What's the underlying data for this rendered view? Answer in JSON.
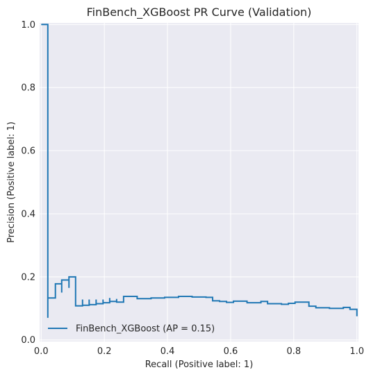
{
  "colors": {
    "plot_background": "#eaeaf2",
    "grid": "#ffffff",
    "series": "#1f77b4",
    "text": "#262626"
  },
  "chart_data": {
    "type": "line",
    "title": "FinBench_XGBoost PR Curve (Validation)",
    "xlabel": "Recall (Positive label: 1)",
    "ylabel": "Precision (Positive label: 1)",
    "xlim": [
      -0.005,
      1.005
    ],
    "ylim": [
      -0.005,
      1.005
    ],
    "x_ticks": [
      0.0,
      0.2,
      0.4,
      0.6,
      0.8,
      1.0
    ],
    "x_tick_labels": [
      "0.0",
      "0.2",
      "0.4",
      "0.6",
      "0.8",
      "1.0"
    ],
    "y_ticks": [
      0.0,
      0.2,
      0.4,
      0.6,
      0.8,
      1.0
    ],
    "y_tick_labels": [
      "0.0",
      "0.2",
      "0.4",
      "0.6",
      "0.8",
      "1.0"
    ],
    "grid": true,
    "legend_position": "lower-left",
    "drawstyle": "steps-post",
    "series": [
      {
        "name": "FinBench_XGBoost (AP = 0.15)",
        "x": [
          0.0,
          0.021,
          0.021,
          0.021,
          0.045,
          0.065,
          0.065,
          0.088,
          0.088,
          0.109,
          0.109,
          0.131,
          0.131,
          0.152,
          0.152,
          0.174,
          0.174,
          0.196,
          0.196,
          0.217,
          0.217,
          0.239,
          0.239,
          0.261,
          0.304,
          0.348,
          0.391,
          0.435,
          0.478,
          0.522,
          0.543,
          0.565,
          0.587,
          0.609,
          0.652,
          0.696,
          0.717,
          0.761,
          0.783,
          0.804,
          0.848,
          0.87,
          0.913,
          0.957,
          0.978,
          1.0
        ],
        "y": [
          1.0,
          1.0,
          0.07,
          0.133,
          0.178,
          0.15,
          0.19,
          0.165,
          0.2,
          0.2,
          0.108,
          0.128,
          0.11,
          0.128,
          0.112,
          0.128,
          0.115,
          0.128,
          0.118,
          0.133,
          0.122,
          0.13,
          0.12,
          0.138,
          0.131,
          0.133,
          0.135,
          0.138,
          0.136,
          0.135,
          0.124,
          0.122,
          0.119,
          0.123,
          0.118,
          0.122,
          0.115,
          0.113,
          0.116,
          0.12,
          0.107,
          0.102,
          0.1,
          0.103,
          0.097,
          0.075
        ]
      }
    ]
  }
}
